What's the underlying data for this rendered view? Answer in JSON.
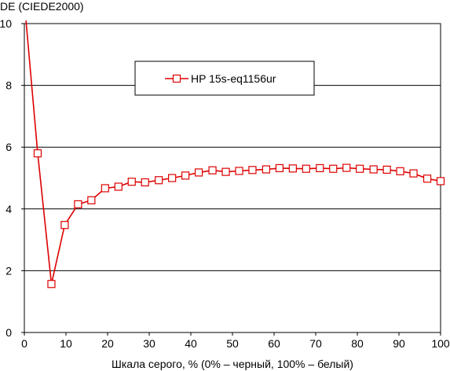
{
  "chart_data": {
    "type": "line",
    "ylabel": "DE (CIEDE2000)",
    "xlabel": "Шкала серого, % (0% – черный, 100% – белый)",
    "xlim": [
      0,
      100
    ],
    "ylim": [
      0,
      10
    ],
    "x_ticks": [
      0,
      10,
      20,
      30,
      40,
      50,
      60,
      70,
      80,
      90,
      100
    ],
    "y_ticks": [
      0,
      2,
      4,
      6,
      8,
      10
    ],
    "grid": "horizontal",
    "legend_position": "top-center",
    "series": [
      {
        "name": "HP 15s-eq1156ur",
        "color": "#dd0000",
        "marker": "open-square",
        "x": [
          0.4,
          3.2,
          6.5,
          9.7,
          12.9,
          16.1,
          19.4,
          22.6,
          25.8,
          29.0,
          32.3,
          35.5,
          38.7,
          41.9,
          45.2,
          48.4,
          51.6,
          54.8,
          58.1,
          61.3,
          64.5,
          67.7,
          71.0,
          74.2,
          77.4,
          80.6,
          83.9,
          87.1,
          90.3,
          93.5,
          96.8,
          100.0
        ],
        "y": [
          10.1,
          5.8,
          1.57,
          3.48,
          4.15,
          4.28,
          4.67,
          4.72,
          4.88,
          4.86,
          4.93,
          5.0,
          5.08,
          5.18,
          5.25,
          5.2,
          5.23,
          5.26,
          5.28,
          5.32,
          5.31,
          5.3,
          5.32,
          5.3,
          5.33,
          5.3,
          5.28,
          5.27,
          5.22,
          5.15,
          4.98,
          4.9
        ]
      }
    ]
  }
}
